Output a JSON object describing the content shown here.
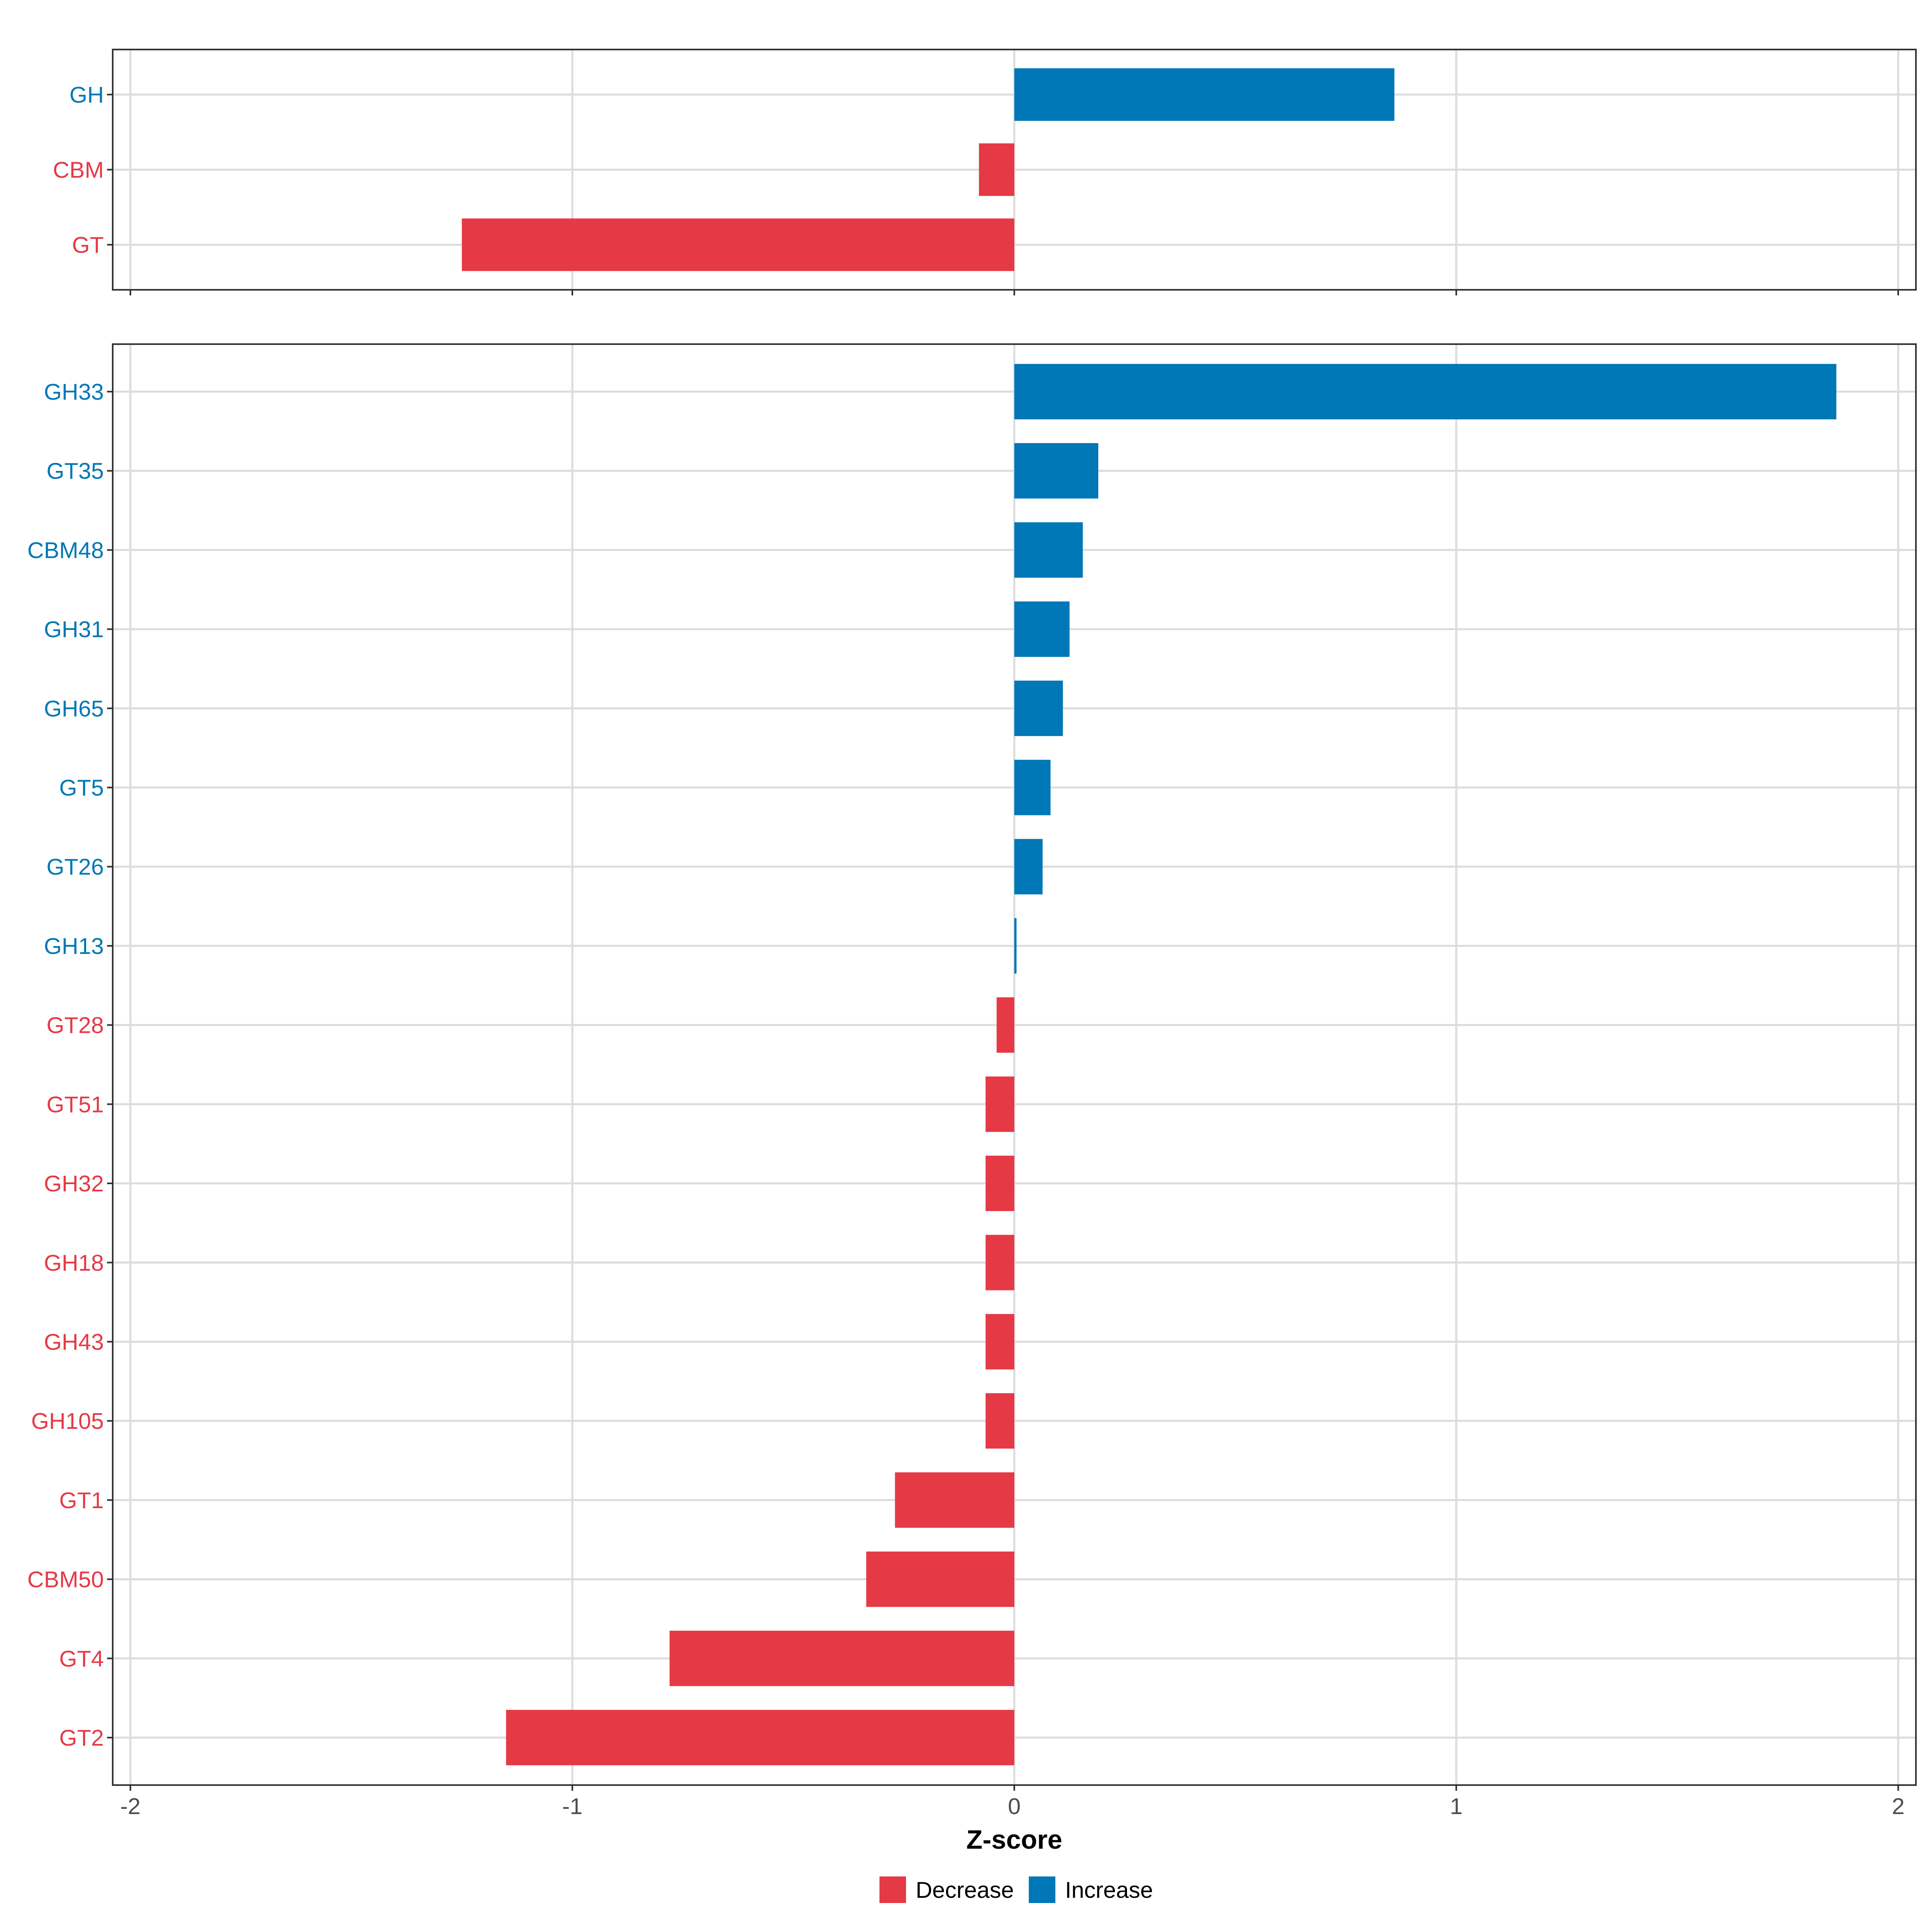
{
  "colors": {
    "decrease": "#E63946",
    "increase": "#0077B6",
    "grid": "#DCDCDC",
    "panel_border": "#333333",
    "tick_text": "#4D4D4D"
  },
  "chart_data": [
    {
      "type": "bar",
      "orientation": "horizontal",
      "panel": "top",
      "categories": [
        "GH",
        "CBM",
        "GT"
      ],
      "values": [
        0.86,
        -0.08,
        -1.25
      ],
      "directions": [
        "Increase",
        "Decrease",
        "Decrease"
      ],
      "xlim": [
        -2.04,
        2.04
      ],
      "xticks": [
        -2,
        -1,
        0,
        1,
        2
      ],
      "xtick_labels": [
        "",
        "",
        "",
        "",
        ""
      ],
      "grid": true
    },
    {
      "type": "bar",
      "orientation": "horizontal",
      "panel": "bottom",
      "categories": [
        "GH33",
        "GT35",
        "CBM48",
        "GH31",
        "GH65",
        "GT5",
        "GT26",
        "GH13",
        "GT28",
        "GT51",
        "GH32",
        "GH18",
        "GH43",
        "GH105",
        "GT1",
        "CBM50",
        "GT4",
        "GT2"
      ],
      "values": [
        1.86,
        0.19,
        0.155,
        0.125,
        0.11,
        0.082,
        0.064,
        0.005,
        -0.04,
        -0.065,
        -0.065,
        -0.065,
        -0.065,
        -0.065,
        -0.27,
        -0.335,
        -0.78,
        -1.15
      ],
      "directions": [
        "Increase",
        "Increase",
        "Increase",
        "Increase",
        "Increase",
        "Increase",
        "Increase",
        "Increase",
        "Decrease",
        "Decrease",
        "Decrease",
        "Decrease",
        "Decrease",
        "Decrease",
        "Decrease",
        "Decrease",
        "Decrease",
        "Decrease"
      ],
      "xlim": [
        -2.04,
        2.04
      ],
      "xticks": [
        -2,
        -1,
        0,
        1,
        2
      ],
      "xtick_labels": [
        "-2",
        "-1",
        "0",
        "1",
        "2"
      ],
      "xlabel": "Z-score",
      "grid": true
    }
  ],
  "legend": {
    "position": "bottom",
    "items": [
      {
        "label": "Decrease",
        "key": "decrease"
      },
      {
        "label": "Increase",
        "key": "increase"
      }
    ]
  }
}
